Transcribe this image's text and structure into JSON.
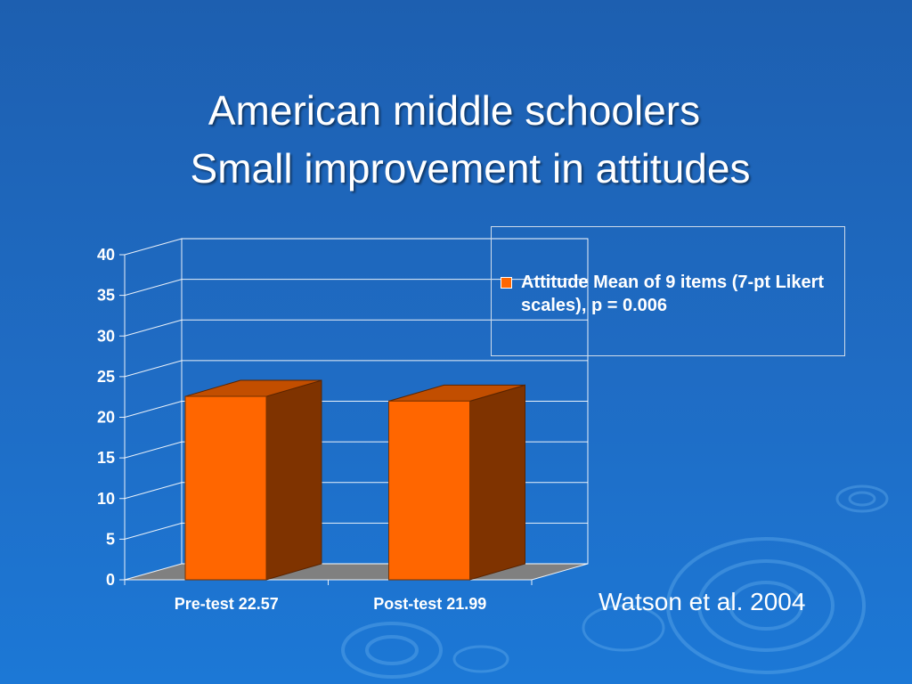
{
  "slide": {
    "title_line1": "American middle schoolers",
    "title_line2": "Small improvement in attitudes",
    "citation": "Watson et al. 2004",
    "colors": {
      "background": "#1f6cc4",
      "bar_front": "#ff6600",
      "bar_side": "#7f3300",
      "bar_top": "#c24e00",
      "floor": "#808080"
    }
  },
  "chart_data": {
    "type": "bar",
    "categories": [
      "Pre-test 22.57",
      "Post-test 21.99"
    ],
    "series": [
      {
        "name": "Attitude Mean of 9 items (7-pt Likert scales), p = 0.006",
        "values": [
          22.57,
          21.99
        ]
      }
    ],
    "ylim": [
      0,
      40
    ],
    "yticks": [
      "0",
      "5",
      "10",
      "15",
      "20",
      "25",
      "30",
      "35",
      "40"
    ],
    "grid": true,
    "legend_position": "top-right",
    "three_d": true
  }
}
